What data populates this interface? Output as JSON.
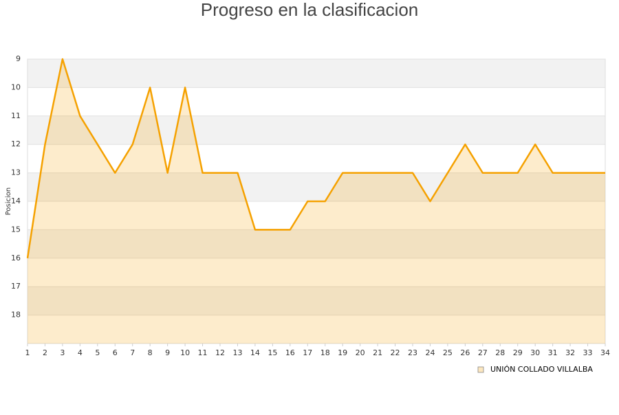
{
  "chart_data": {
    "type": "area",
    "title": "Progreso en la clasificacion",
    "y_label": "Posicion",
    "x": [
      1,
      2,
      3,
      4,
      5,
      6,
      7,
      8,
      9,
      10,
      11,
      12,
      13,
      14,
      15,
      16,
      17,
      18,
      19,
      20,
      21,
      22,
      23,
      24,
      25,
      26,
      27,
      28,
      29,
      30,
      31,
      32,
      33,
      34
    ],
    "xlim": [
      1,
      34
    ],
    "xticks": [
      1,
      2,
      3,
      4,
      5,
      6,
      7,
      8,
      9,
      10,
      11,
      12,
      13,
      14,
      15,
      16,
      17,
      18,
      19,
      20,
      21,
      22,
      23,
      24,
      25,
      26,
      27,
      28,
      29,
      30,
      31,
      32,
      33,
      34
    ],
    "ylim": [
      19,
      9
    ],
    "yticks": [
      9,
      10,
      11,
      12,
      13,
      14,
      15,
      16,
      17,
      18
    ],
    "grid": true,
    "legend": "bottom-right",
    "series": [
      {
        "name": "UNIÓN COLLADO VILLALBA",
        "color": "#f5a100",
        "values": [
          16,
          12,
          9,
          11,
          12,
          13,
          12,
          10,
          13,
          10,
          13,
          13,
          13,
          15,
          15,
          15,
          14,
          14,
          13,
          13,
          13,
          13,
          13,
          14,
          13,
          12,
          13,
          13,
          13,
          12,
          13,
          13,
          13,
          13
        ]
      }
    ]
  }
}
